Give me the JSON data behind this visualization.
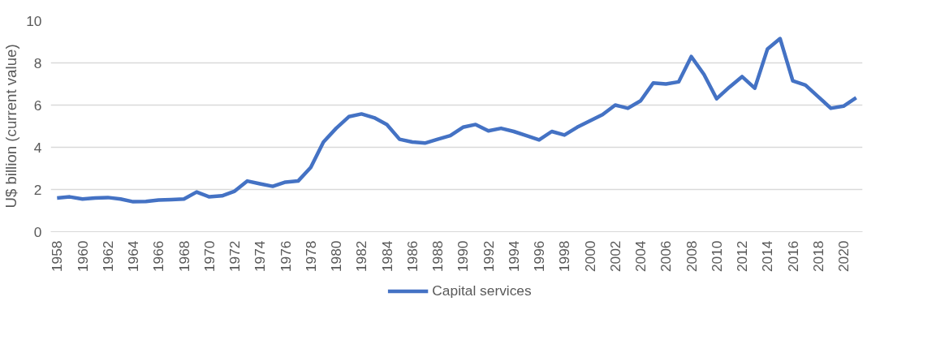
{
  "chart_data": {
    "type": "line",
    "ylabel": "U$ billion (current value)",
    "x": [
      1958,
      1959,
      1960,
      1961,
      1962,
      1963,
      1964,
      1965,
      1966,
      1967,
      1968,
      1969,
      1970,
      1971,
      1972,
      1973,
      1974,
      1975,
      1976,
      1977,
      1978,
      1979,
      1980,
      1981,
      1982,
      1983,
      1984,
      1985,
      1986,
      1987,
      1988,
      1989,
      1990,
      1991,
      1992,
      1993,
      1994,
      1995,
      1996,
      1997,
      1998,
      1999,
      2000,
      2001,
      2002,
      2003,
      2004,
      2005,
      2006,
      2007,
      2008,
      2009,
      2010,
      2011,
      2012,
      2013,
      2014,
      2015,
      2016,
      2017,
      2018,
      2019,
      2020,
      2021
    ],
    "series": [
      {
        "name": "Capital services",
        "color": "#4472c4",
        "values": [
          1.6,
          1.65,
          1.55,
          1.6,
          1.62,
          1.55,
          1.42,
          1.43,
          1.5,
          1.52,
          1.55,
          1.88,
          1.65,
          1.7,
          1.92,
          2.4,
          2.27,
          2.15,
          2.35,
          2.4,
          3.05,
          4.25,
          4.9,
          5.45,
          5.58,
          5.4,
          5.08,
          4.38,
          4.25,
          4.2,
          4.38,
          4.55,
          4.95,
          5.08,
          4.78,
          4.9,
          4.75,
          4.55,
          4.35,
          4.75,
          4.58,
          4.95,
          5.25,
          5.55,
          6.0,
          5.85,
          6.2,
          7.05,
          7.0,
          7.1,
          8.3,
          7.45,
          6.3,
          6.85,
          7.35,
          6.8,
          8.65,
          9.15,
          7.15,
          6.95,
          6.4,
          5.85,
          5.95,
          6.35
        ]
      }
    ],
    "xlim": [
      1957.5,
      2021.5
    ],
    "xticks": [
      1958,
      1960,
      1962,
      1964,
      1966,
      1968,
      1970,
      1972,
      1974,
      1976,
      1978,
      1980,
      1982,
      1984,
      1986,
      1988,
      1990,
      1992,
      1994,
      1996,
      1998,
      2000,
      2002,
      2004,
      2006,
      2008,
      2010,
      2012,
      2014,
      2016,
      2018,
      2020
    ],
    "ylim": [
      0,
      10
    ],
    "yticks": [
      0,
      2,
      4,
      6,
      8,
      10
    ],
    "grid": "y",
    "legend": "bottom",
    "marker": "none",
    "line_style": "solid"
  }
}
